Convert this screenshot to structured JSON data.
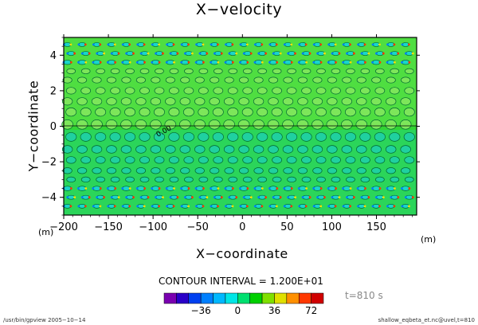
{
  "chart_data": {
    "type": "heatmap",
    "title": "X−velocity",
    "xlabel": "X−coordinate",
    "ylabel": "Y−coordinate",
    "x_unit": "(m)",
    "y_unit": "(m)",
    "xlim": [
      -200,
      195
    ],
    "ylim": [
      -5,
      5
    ],
    "x_ticks": [
      -200,
      -150,
      -100,
      -50,
      0,
      50,
      100,
      150
    ],
    "y_ticks": [
      -4,
      -2,
      0,
      2,
      4
    ],
    "contour_label": "0.00",
    "contour_interval_text": "CONTOUR INTERVAL = 1.200E+01",
    "colorbar": {
      "levels": [
        -72,
        -60,
        -48,
        -36,
        -24,
        -12,
        0,
        12,
        24,
        36,
        48,
        60,
        72
      ],
      "tick_labels": [
        "-36",
        "0",
        "36",
        "72"
      ],
      "tick_values": [
        -36,
        0,
        36,
        72
      ],
      "colors": [
        "#7a00b0",
        "#2a00c8",
        "#0040f0",
        "#0080ff",
        "#00b8ff",
        "#00e6e6",
        "#00e070",
        "#00d000",
        "#80e000",
        "#e0e000",
        "#ff9000",
        "#ff3800",
        "#d00000"
      ]
    },
    "grid": false
  },
  "time_label": "t=810 s",
  "footer": {
    "left": "/usr/bin/gpview  2005−10−14",
    "right": "shallow_eqbeta_et.nc@uvel,t=810"
  }
}
